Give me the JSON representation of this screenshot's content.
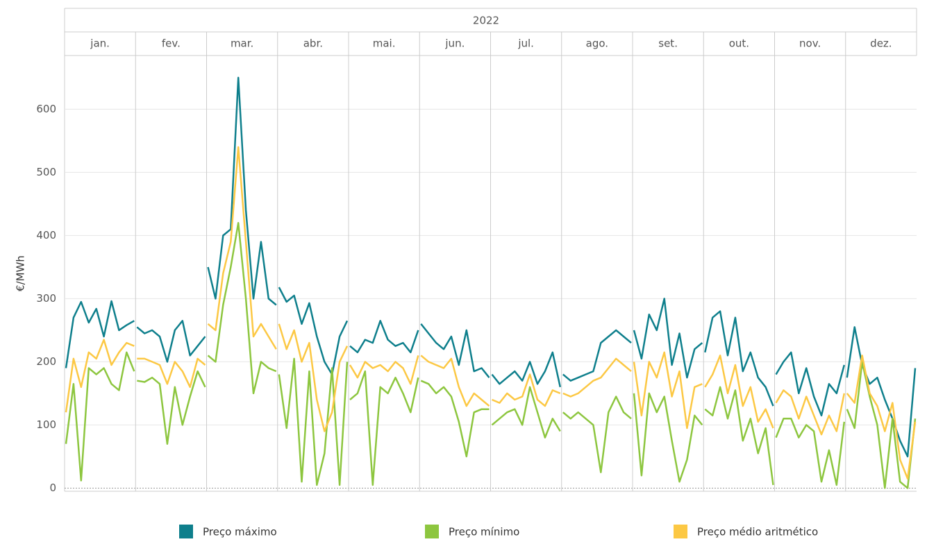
{
  "chart_data": {
    "type": "line",
    "year": "2022",
    "categories": [
      "jan.",
      "fev.",
      "mar.",
      "abr.",
      "mai.",
      "jun.",
      "jul.",
      "ago.",
      "set.",
      "out.",
      "nov.",
      "dez."
    ],
    "y_label": "€/MWh",
    "ylim": [
      -5,
      685
    ],
    "yticks": [
      0,
      100,
      200,
      300,
      400,
      500,
      600
    ],
    "grid": true,
    "series": [
      {
        "name": "Preço máximo",
        "color": "#0e7f8c",
        "values": [
          [
            190,
            270,
            295,
            262,
            284,
            240,
            296,
            250,
            258,
            265
          ],
          [
            255,
            245,
            250,
            240,
            200,
            250,
            265,
            210,
            225,
            240
          ],
          [
            350,
            300,
            400,
            410,
            650,
            440,
            300,
            390,
            300,
            290
          ],
          [
            318,
            295,
            305,
            260,
            293,
            240,
            200,
            180,
            240,
            265
          ],
          [
            225,
            215,
            235,
            230,
            265,
            235,
            225,
            230,
            215,
            250
          ],
          [
            260,
            245,
            230,
            220,
            240,
            195,
            250,
            185,
            190,
            175
          ],
          [
            180,
            165,
            175,
            185,
            170,
            200,
            165,
            185,
            215,
            160
          ],
          [
            180,
            170,
            175,
            180,
            185,
            230,
            240,
            250,
            240,
            230
          ],
          [
            250,
            205,
            275,
            250,
            300,
            195,
            245,
            175,
            220,
            230
          ],
          [
            215,
            270,
            280,
            210,
            270,
            185,
            215,
            175,
            160,
            130
          ],
          [
            180,
            200,
            215,
            150,
            190,
            145,
            115,
            165,
            150,
            195
          ],
          [
            175,
            255,
            195,
            165,
            175,
            140,
            110,
            75,
            50,
            190
          ]
        ]
      },
      {
        "name": "Preço mínimo",
        "color": "#8dc63f",
        "values": [
          [
            70,
            165,
            12,
            190,
            180,
            190,
            165,
            155,
            215,
            185
          ],
          [
            170,
            168,
            175,
            165,
            70,
            160,
            100,
            145,
            185,
            160
          ],
          [
            210,
            200,
            290,
            350,
            420,
            300,
            150,
            200,
            190,
            185
          ],
          [
            180,
            95,
            205,
            10,
            185,
            5,
            55,
            190,
            5,
            200
          ],
          [
            140,
            150,
            185,
            5,
            160,
            150,
            175,
            150,
            120,
            175
          ],
          [
            170,
            165,
            150,
            160,
            145,
            105,
            50,
            120,
            125,
            125
          ],
          [
            100,
            110,
            120,
            125,
            100,
            160,
            120,
            80,
            110,
            90
          ],
          [
            120,
            110,
            120,
            110,
            100,
            25,
            120,
            145,
            120,
            110
          ],
          [
            150,
            20,
            150,
            120,
            145,
            75,
            10,
            45,
            115,
            100
          ],
          [
            125,
            115,
            160,
            110,
            155,
            75,
            110,
            55,
            95,
            5
          ],
          [
            80,
            110,
            110,
            80,
            100,
            90,
            10,
            60,
            5,
            105
          ],
          [
            125,
            95,
            200,
            145,
            100,
            0,
            110,
            10,
            0,
            110
          ]
        ]
      },
      {
        "name": "Preço médio aritmético",
        "color": "#fcc844",
        "values": [
          [
            120,
            205,
            160,
            215,
            205,
            235,
            195,
            215,
            230,
            225
          ],
          [
            205,
            205,
            200,
            195,
            165,
            200,
            185,
            160,
            205,
            195
          ],
          [
            260,
            250,
            340,
            390,
            540,
            390,
            240,
            260,
            240,
            220
          ],
          [
            260,
            220,
            250,
            200,
            230,
            140,
            90,
            120,
            200,
            225
          ],
          [
            195,
            175,
            200,
            190,
            195,
            185,
            200,
            190,
            165,
            210
          ],
          [
            210,
            200,
            195,
            190,
            205,
            160,
            130,
            150,
            140,
            130
          ],
          [
            140,
            135,
            150,
            140,
            145,
            180,
            140,
            130,
            155,
            150
          ],
          [
            150,
            145,
            150,
            160,
            170,
            175,
            190,
            205,
            195,
            185
          ],
          [
            200,
            115,
            200,
            175,
            215,
            145,
            185,
            95,
            160,
            165
          ],
          [
            160,
            180,
            210,
            150,
            195,
            130,
            160,
            105,
            125,
            95
          ],
          [
            135,
            155,
            145,
            110,
            145,
            115,
            85,
            115,
            90,
            150
          ],
          [
            150,
            135,
            210,
            150,
            130,
            90,
            135,
            45,
            15,
            105
          ]
        ]
      }
    ]
  }
}
